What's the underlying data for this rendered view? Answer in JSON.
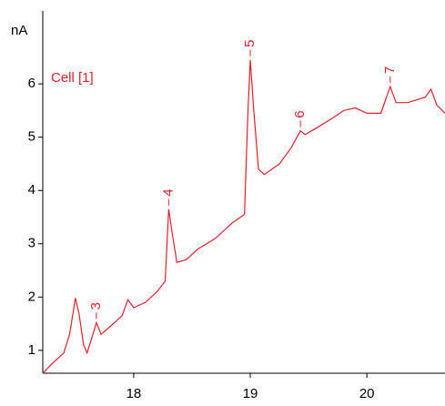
{
  "chart_data": {
    "type": "line",
    "y_label": "nA",
    "annotation": "Cell [1]",
    "x": [
      17.22,
      17.3,
      17.4,
      17.45,
      17.5,
      17.53,
      17.57,
      17.6,
      17.65,
      17.68,
      17.72,
      17.8,
      17.9,
      17.95,
      18.0,
      18.1,
      18.2,
      18.27,
      18.3,
      18.33,
      18.37,
      18.45,
      18.55,
      18.7,
      18.85,
      18.95,
      18.98,
      19.0,
      19.03,
      19.07,
      19.12,
      19.25,
      19.35,
      19.43,
      19.47,
      19.55,
      19.7,
      19.8,
      19.9,
      20.0,
      20.12,
      20.2,
      20.25,
      20.35,
      20.5,
      20.55,
      20.6,
      20.67
    ],
    "series": [
      {
        "color": "#e3202a",
        "values": [
          0.57,
          0.75,
          0.95,
          1.3,
          1.98,
          1.7,
          1.1,
          0.95,
          1.3,
          1.52,
          1.3,
          1.45,
          1.65,
          1.95,
          1.8,
          1.9,
          2.1,
          2.3,
          3.65,
          3.2,
          2.65,
          2.7,
          2.9,
          3.1,
          3.4,
          3.55,
          5.5,
          6.45,
          5.5,
          4.4,
          4.3,
          4.5,
          4.8,
          5.12,
          5.05,
          5.15,
          5.35,
          5.5,
          5.55,
          5.45,
          5.45,
          5.95,
          5.65,
          5.65,
          5.75,
          5.9,
          5.6,
          5.45
        ]
      }
    ],
    "peaks": [
      {
        "label": "3",
        "x": 17.68,
        "y": 1.52
      },
      {
        "label": "4",
        "x": 18.3,
        "y": 3.65
      },
      {
        "label": "5",
        "x": 19.0,
        "y": 6.45
      },
      {
        "label": "6",
        "x": 19.43,
        "y": 5.12
      },
      {
        "label": "7",
        "x": 20.2,
        "y": 5.95
      }
    ],
    "xlim": [
      17.22,
      20.67
    ],
    "ylim": [
      0.57,
      7.37
    ],
    "xticks": [
      18,
      19,
      20
    ],
    "yticks": [
      1,
      2,
      3,
      4,
      5,
      6
    ]
  }
}
